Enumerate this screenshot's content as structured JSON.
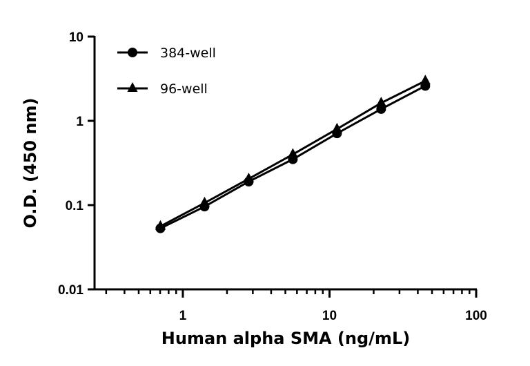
{
  "chart_data": {
    "type": "line",
    "title": "",
    "xlabel": "Human alpha SMA (ng/mL)",
    "ylabel": "O.D. (450 nm)",
    "xscale": "log",
    "yscale": "log",
    "xlim": [
      0.25,
      100
    ],
    "ylim": [
      0.01,
      10
    ],
    "xticks": [
      "1",
      "10",
      "100"
    ],
    "yticks": [
      "0.01",
      "0.1",
      "1",
      "10"
    ],
    "grid": false,
    "legend_position": "top-left",
    "x": [
      0.703,
      1.406,
      2.8125,
      5.625,
      11.25,
      22.5,
      45
    ],
    "series": [
      {
        "name": "384-well",
        "marker": "circle",
        "color": "#000000",
        "values": [
          0.053,
          0.096,
          0.19,
          0.35,
          0.71,
          1.38,
          2.6
        ]
      },
      {
        "name": "96-well",
        "marker": "triangle",
        "color": "#000000",
        "values": [
          0.056,
          0.106,
          0.205,
          0.4,
          0.8,
          1.63,
          2.98
        ]
      }
    ]
  }
}
